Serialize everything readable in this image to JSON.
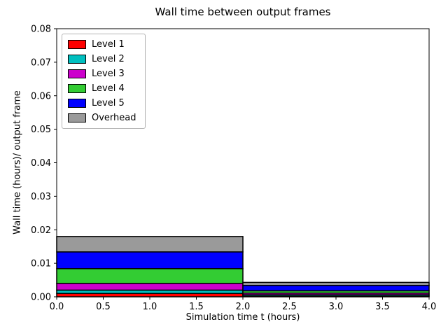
{
  "figure": {
    "title": "Wall time between output frames",
    "xlabel": "Simulation time t (hours)",
    "ylabel": "Wall time (hours)/ output frame"
  },
  "chart_data": {
    "type": "bar",
    "stacked": true,
    "title": "Wall time between output frames",
    "xlabel": "Simulation time t (hours)",
    "ylabel": "Wall time (hours)/ output frame",
    "xlim": [
      0,
      4
    ],
    "ylim": [
      0,
      0.08
    ],
    "grid": false,
    "legend_position": "upper left",
    "xticks": [
      "0.0",
      "0.5",
      "1.0",
      "1.5",
      "2.0",
      "2.5",
      "3.0",
      "3.5",
      "4.0"
    ],
    "yticks": [
      "0.00",
      "0.01",
      "0.02",
      "0.03",
      "0.04",
      "0.05",
      "0.06",
      "0.07",
      "0.08"
    ],
    "bar_edges": [
      0,
      2,
      4
    ],
    "series": [
      {
        "name": "Level 1",
        "color": "#ff0000",
        "values": [
          0.001,
          0.0002
        ]
      },
      {
        "name": "Level 2",
        "color": "#00bfbf",
        "values": [
          0.001,
          0.0004
        ]
      },
      {
        "name": "Level 3",
        "color": "#cc00cc",
        "values": [
          0.002,
          0.0005
        ]
      },
      {
        "name": "Level 4",
        "color": "#33cc33",
        "values": [
          0.0044,
          0.0007
        ]
      },
      {
        "name": "Level 5",
        "color": "#0000ff",
        "values": [
          0.005,
          0.0016
        ]
      },
      {
        "name": "Overhead",
        "color": "#9a9a9a",
        "values": [
          0.0046,
          0.0009
        ]
      }
    ],
    "bar_edge_color": "#000000",
    "bar_edge_width": 1.5
  }
}
